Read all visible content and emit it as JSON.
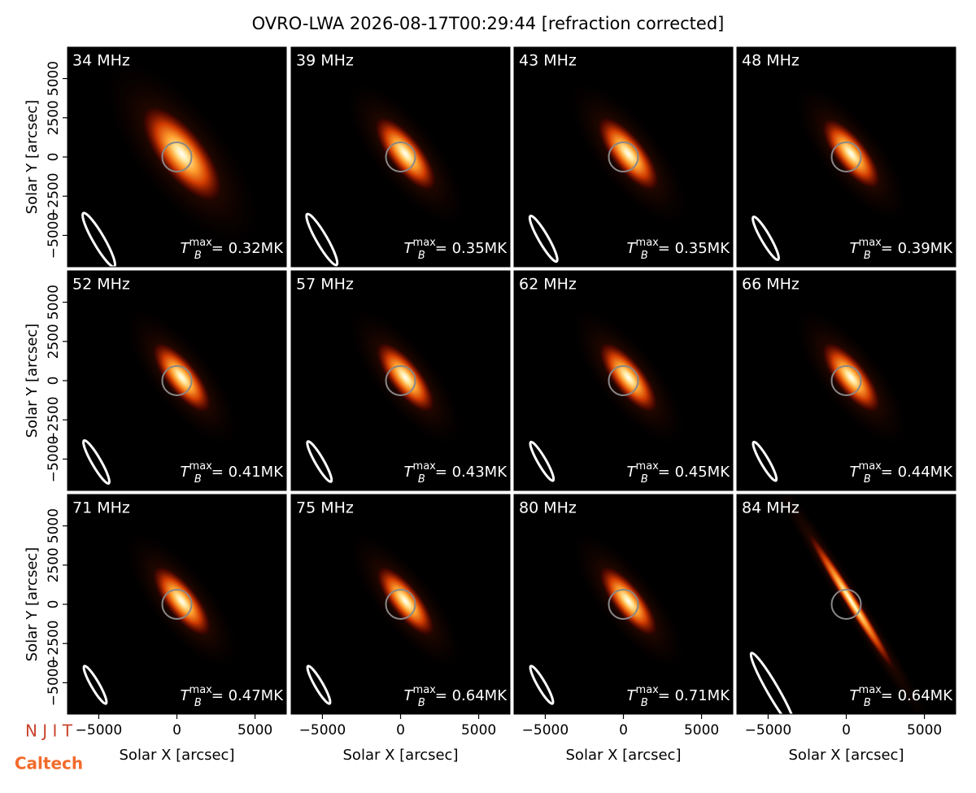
{
  "title": "OVRO-LWA 2026-08-17T00:29:44 [refraction corrected]",
  "tb_symbol": {
    "base": "T",
    "sub": "B",
    "sup": "max"
  },
  "logos": [
    "N J I T",
    "Caltech"
  ],
  "chart_data": [
    {
      "type": "image",
      "title": "34 MHz",
      "annotation": "= 0.32MK",
      "xlim": [
        -7000,
        7000
      ],
      "ylim": [
        -7000,
        7000
      ],
      "ylabel": "Solar Y [arcsec]",
      "yticks": [
        {
          "value": -5000,
          "label": "−5000"
        },
        {
          "value": -2500,
          "label": "−2500"
        },
        0,
        2500,
        5000
      ]
    },
    {
      "type": "image",
      "title": "39 MHz",
      "annotation": "= 0.35MK",
      "xlim": [
        -7000,
        7000
      ],
      "ylim": [
        -7000,
        7000
      ]
    },
    {
      "type": "image",
      "title": "43 MHz",
      "annotation": "= 0.35MK",
      "xlim": [
        -7000,
        7000
      ],
      "ylim": [
        -7000,
        7000
      ]
    },
    {
      "type": "image",
      "title": "48 MHz",
      "annotation": "= 0.39MK",
      "xlim": [
        -7000,
        7000
      ],
      "ylim": [
        -7000,
        7000
      ]
    },
    {
      "type": "image",
      "title": "52 MHz",
      "annotation": "= 0.41MK",
      "xlim": [
        -7000,
        7000
      ],
      "ylim": [
        -7000,
        7000
      ],
      "ylabel": "Solar Y [arcsec]",
      "yticks": [
        {
          "value": -5000,
          "label": "−5000"
        },
        {
          "value": -2500,
          "label": "−2500"
        },
        0,
        2500,
        5000
      ]
    },
    {
      "type": "image",
      "title": "57 MHz",
      "annotation": "= 0.43MK",
      "xlim": [
        -7000,
        7000
      ],
      "ylim": [
        -7000,
        7000
      ]
    },
    {
      "type": "image",
      "title": "62 MHz",
      "annotation": "= 0.45MK",
      "xlim": [
        -7000,
        7000
      ],
      "ylim": [
        -7000,
        7000
      ]
    },
    {
      "type": "image",
      "title": "66 MHz",
      "annotation": "= 0.44MK",
      "xlim": [
        -7000,
        7000
      ],
      "ylim": [
        -7000,
        7000
      ]
    },
    {
      "type": "image",
      "title": "71 MHz",
      "annotation": "= 0.47MK",
      "xlim": [
        -7000,
        7000
      ],
      "ylim": [
        -7000,
        7000
      ],
      "ylabel": "Solar Y [arcsec]",
      "yticks": [
        {
          "value": -5000,
          "label": "−5000"
        },
        {
          "value": -2500,
          "label": "−2500"
        },
        0,
        2500,
        5000
      ],
      "xlabel": "Solar X [arcsec]",
      "xticks": [
        {
          "value": -5000,
          "label": "−5000"
        },
        0,
        5000
      ]
    },
    {
      "type": "image",
      "title": "75 MHz",
      "annotation": "= 0.64MK",
      "xlim": [
        -7000,
        7000
      ],
      "ylim": [
        -7000,
        7000
      ],
      "xlabel": "Solar X [arcsec]",
      "xticks": [
        {
          "value": -5000,
          "label": "−5000"
        },
        0,
        5000
      ]
    },
    {
      "type": "image",
      "title": "80 MHz",
      "annotation": "= 0.71MK",
      "xlim": [
        -7000,
        7000
      ],
      "ylim": [
        -7000,
        7000
      ],
      "xlabel": "Solar X [arcsec]",
      "xticks": [
        {
          "value": -5000,
          "label": "−5000"
        },
        0,
        5000
      ]
    },
    {
      "type": "image",
      "title": "84 MHz",
      "annotation": "= 0.64MK",
      "xlim": [
        -7000,
        7000
      ],
      "ylim": [
        -7000,
        7000
      ],
      "xlabel": "Solar X [arcsec]",
      "xticks": [
        {
          "value": -5000,
          "label": "−5000"
        },
        0,
        5000
      ]
    }
  ]
}
